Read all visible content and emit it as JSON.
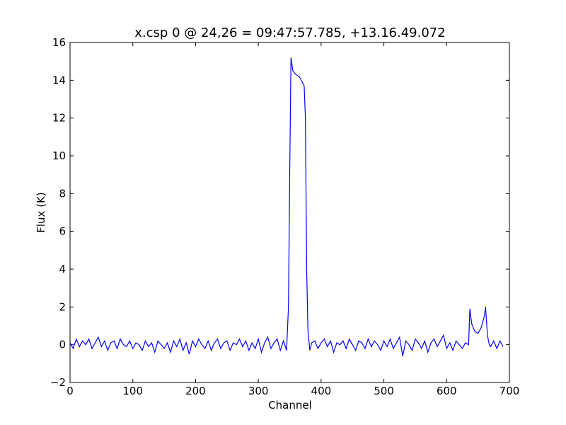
{
  "chart_data": {
    "type": "line",
    "title": "x.csp 0 @ 24,26 = 09:47:57.785, +13.16.49.072",
    "x_label": "Channel",
    "y_label": "Flux (K)",
    "xlim": [
      0,
      700
    ],
    "xticks": [
      0,
      100,
      200,
      300,
      400,
      500,
      600,
      700
    ],
    "ylim": [
      -2,
      16
    ],
    "yticks": [
      {
        "value": -2,
        "label": "−2"
      },
      0,
      2,
      4,
      6,
      8,
      10,
      12,
      14,
      16
    ],
    "x": [
      0,
      5,
      10,
      15,
      20,
      25,
      30,
      35,
      40,
      45,
      50,
      55,
      60,
      65,
      70,
      75,
      80,
      85,
      90,
      95,
      100,
      105,
      110,
      115,
      120,
      125,
      130,
      135,
      140,
      145,
      150,
      155,
      160,
      165,
      170,
      175,
      180,
      185,
      190,
      195,
      200,
      205,
      210,
      215,
      220,
      225,
      230,
      235,
      240,
      245,
      250,
      255,
      260,
      265,
      270,
      275,
      280,
      285,
      290,
      295,
      300,
      305,
      310,
      315,
      320,
      325,
      330,
      335,
      340,
      345,
      348,
      350,
      352,
      355,
      360,
      365,
      370,
      373,
      375,
      377,
      379,
      382,
      385,
      390,
      395,
      400,
      405,
      410,
      415,
      420,
      425,
      430,
      435,
      440,
      445,
      450,
      455,
      460,
      465,
      470,
      475,
      480,
      485,
      490,
      495,
      500,
      505,
      510,
      515,
      520,
      525,
      530,
      535,
      540,
      545,
      550,
      555,
      560,
      565,
      570,
      575,
      580,
      585,
      590,
      595,
      600,
      605,
      610,
      615,
      620,
      625,
      630,
      635,
      637,
      640,
      645,
      650,
      655,
      660,
      662,
      665,
      668,
      670,
      675,
      680,
      685,
      690
    ],
    "series": [
      {
        "color": "#0000ff",
        "values": [
          0.1,
          -0.2,
          0.3,
          -0.1,
          0.2,
          0.0,
          0.3,
          -0.2,
          0.1,
          0.4,
          -0.1,
          0.2,
          -0.3,
          0.1,
          0.2,
          -0.2,
          0.3,
          0.0,
          -0.1,
          0.2,
          -0.2,
          0.1,
          0.0,
          -0.3,
          0.2,
          -0.1,
          0.1,
          -0.4,
          0.2,
          0.0,
          -0.2,
          0.1,
          -0.4,
          0.2,
          -0.1,
          0.3,
          -0.3,
          0.1,
          -0.5,
          0.2,
          -0.1,
          0.3,
          0.0,
          -0.2,
          0.2,
          -0.3,
          0.1,
          0.3,
          -0.2,
          0.1,
          0.2,
          -0.3,
          0.1,
          0.0,
          0.3,
          -0.1,
          0.2,
          -0.3,
          0.1,
          -0.2,
          0.3,
          -0.4,
          0.1,
          0.4,
          -0.2,
          0.1,
          0.3,
          -0.3,
          0.2,
          -0.3,
          2.0,
          9.0,
          15.2,
          14.5,
          14.3,
          14.2,
          13.9,
          13.7,
          12.0,
          4.0,
          0.8,
          -0.3,
          0.1,
          0.2,
          -0.2,
          0.1,
          0.3,
          -0.1,
          0.2,
          -0.4,
          0.1,
          0.0,
          0.2,
          -0.2,
          0.3,
          0.0,
          -0.3,
          0.2,
          0.1,
          -0.2,
          0.3,
          -0.1,
          0.2,
          0.0,
          -0.3,
          0.2,
          -0.1,
          0.3,
          -0.2,
          0.1,
          0.4,
          -0.6,
          0.2,
          0.0,
          -0.3,
          0.3,
          0.1,
          -0.2,
          0.2,
          -0.4,
          0.1,
          0.3,
          -0.1,
          0.2,
          0.5,
          -0.2,
          0.1,
          -0.3,
          0.2,
          0.0,
          -0.2,
          0.1,
          0.0,
          1.9,
          1.1,
          0.7,
          0.6,
          0.9,
          1.5,
          2.0,
          0.5,
          0.0,
          -0.1,
          0.2,
          -0.2,
          0.2,
          -0.1
        ]
      }
    ]
  }
}
